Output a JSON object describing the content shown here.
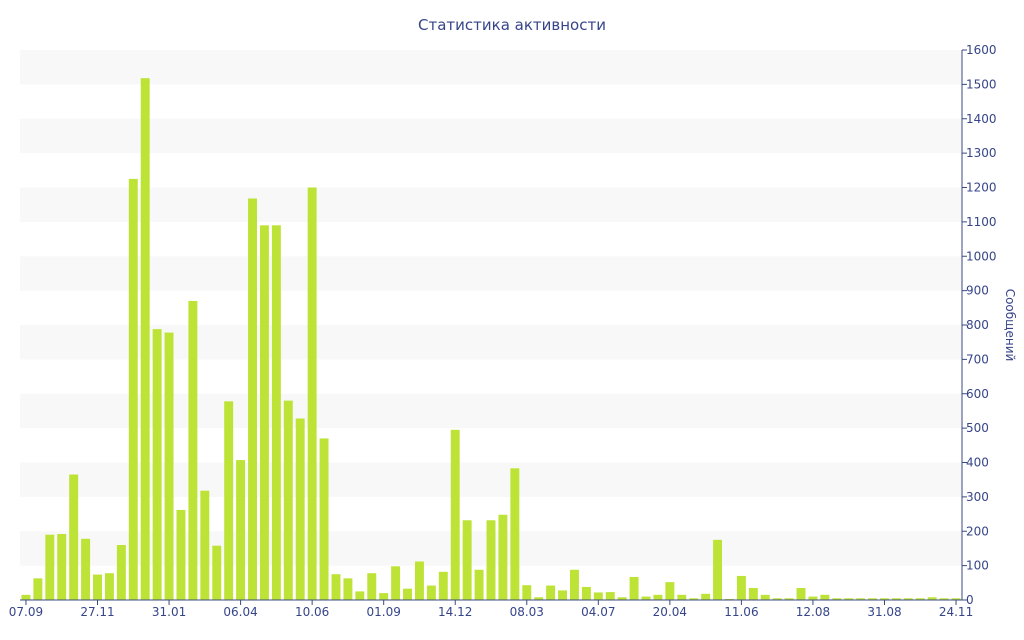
{
  "chart_data": {
    "type": "bar",
    "title": "Статистика активности",
    "ylabel": "Сообщений",
    "xlabel": "",
    "y_axis_side": "right",
    "ylim": [
      0,
      1600
    ],
    "y_ticks": [
      0,
      100,
      200,
      300,
      400,
      500,
      600,
      700,
      800,
      900,
      1000,
      1100,
      1200,
      1300,
      1400,
      1500,
      1600
    ],
    "x_tick_labels": [
      {
        "label": "07.09",
        "index": 0
      },
      {
        "label": "27.11",
        "index": 6
      },
      {
        "label": "31.01",
        "index": 12
      },
      {
        "label": "06.04",
        "index": 18
      },
      {
        "label": "10.06",
        "index": 24
      },
      {
        "label": "01.09",
        "index": 30
      },
      {
        "label": "14.12",
        "index": 36
      },
      {
        "label": "08.03",
        "index": 42
      },
      {
        "label": "04.07",
        "index": 48
      },
      {
        "label": "20.04",
        "index": 54
      },
      {
        "label": "11.06",
        "index": 60
      },
      {
        "label": "12.08",
        "index": 66
      },
      {
        "label": "31.08",
        "index": 72
      },
      {
        "label": "24.11",
        "index": 78
      }
    ],
    "values": [
      15,
      63,
      190,
      192,
      365,
      178,
      74,
      78,
      160,
      1225,
      1518,
      788,
      778,
      262,
      870,
      318,
      158,
      578,
      407,
      1168,
      1090,
      1090,
      580,
      528,
      1200,
      470,
      75,
      63,
      25,
      78,
      20,
      98,
      33,
      112,
      42,
      82,
      495,
      232,
      88,
      232,
      248,
      383,
      43,
      8,
      42,
      28,
      88,
      38,
      22,
      23,
      8,
      67,
      10,
      15,
      52,
      15,
      5,
      18,
      175,
      3,
      70,
      35,
      15,
      5,
      5,
      35,
      10,
      15,
      5,
      5,
      5,
      5,
      5,
      5,
      5,
      5,
      8,
      5,
      5
    ],
    "colors": {
      "bar": "#bde336",
      "band": "#f8f8f8",
      "text": "#36458a",
      "axis": "#3a4a80"
    },
    "grid": "alternating horizontal bands",
    "legend": "none"
  }
}
